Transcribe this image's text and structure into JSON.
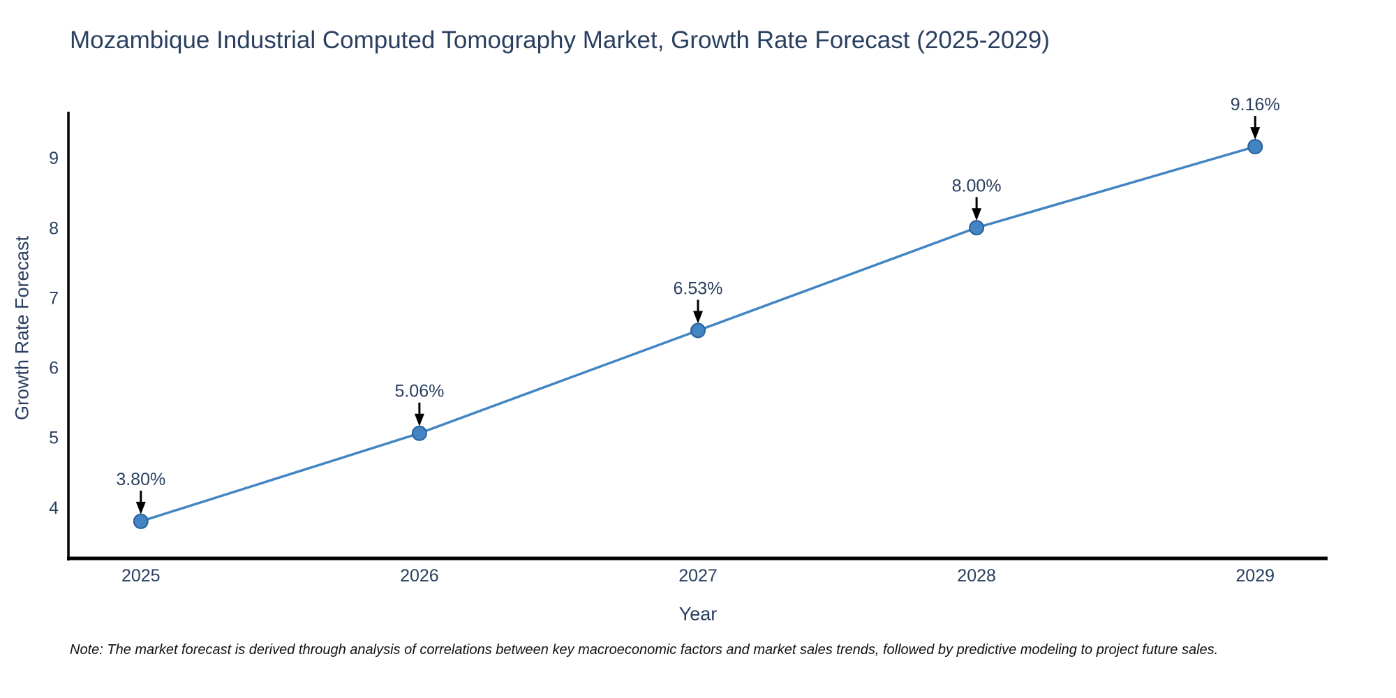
{
  "chart_data": {
    "type": "line",
    "title": "Mozambique Industrial Computed Tomography Market, Growth Rate Forecast (2025-2029)",
    "xlabel": "Year",
    "ylabel": "Growth Rate Forecast",
    "x": [
      2025,
      2026,
      2027,
      2028,
      2029
    ],
    "values": [
      3.8,
      5.06,
      6.53,
      8.0,
      9.16
    ],
    "point_labels": [
      "3.80%",
      "5.06%",
      "6.53%",
      "8.00%",
      "9.16%"
    ],
    "x_tick_labels": [
      "2025",
      "2026",
      "2027",
      "2028",
      "2029"
    ],
    "x_tick_values": [
      2025,
      2026,
      2027,
      2028,
      2029
    ],
    "y_tick_labels": [
      "4",
      "5",
      "6",
      "7",
      "8",
      "9"
    ],
    "y_tick_values": [
      4,
      5,
      6,
      7,
      8,
      9
    ],
    "xlim": [
      2024.74,
      2029.26
    ],
    "ylim": [
      3.27,
      9.66
    ],
    "grid": false,
    "legend": "none",
    "annotation_arrows": true,
    "colors": {
      "line": "#4285c2",
      "marker_fill": "#4285c2",
      "marker_edge": "#2a6099",
      "axis_line": "#000000",
      "text": "#2a3f5f",
      "annotation_arrow": "#000000",
      "note_text": "#111111"
    },
    "note": "Note: The market forecast is derived through analysis of correlations between key macroeconomic factors and market sales trends, followed by predictive modeling to project future sales."
  }
}
